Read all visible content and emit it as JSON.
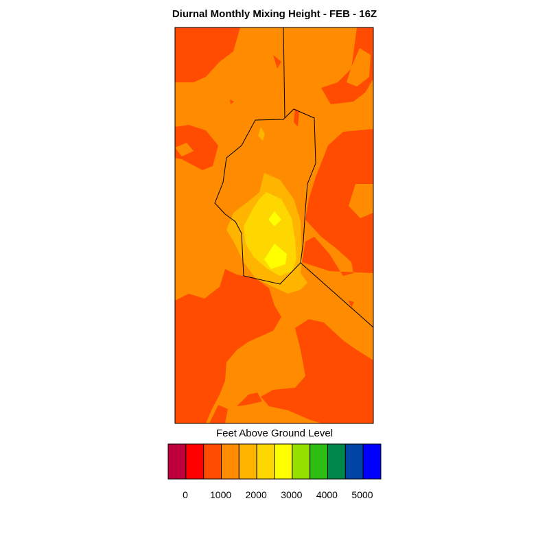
{
  "title": "Diurnal Monthly Mixing Height - FEB - 16Z",
  "colorbar": {
    "title": "Feet Above Ground Level",
    "colors": [
      "#c0003c",
      "#ff0000",
      "#ff4c00",
      "#ff8c00",
      "#ffb400",
      "#ffd700",
      "#ffff00",
      "#96e000",
      "#2dbe14",
      "#00874a",
      "#0044a6",
      "#0000ff"
    ],
    "tick_labels": [
      "0",
      "1000",
      "2000",
      "3000",
      "4000",
      "5000"
    ]
  },
  "map": {
    "colors": {
      "background": "#ff8c00",
      "band_low": "#ff4c00",
      "band_mid": "#ffb400",
      "band_high": "#ffd700",
      "band_peak": "#ffff00",
      "boundary": "#000000"
    }
  }
}
